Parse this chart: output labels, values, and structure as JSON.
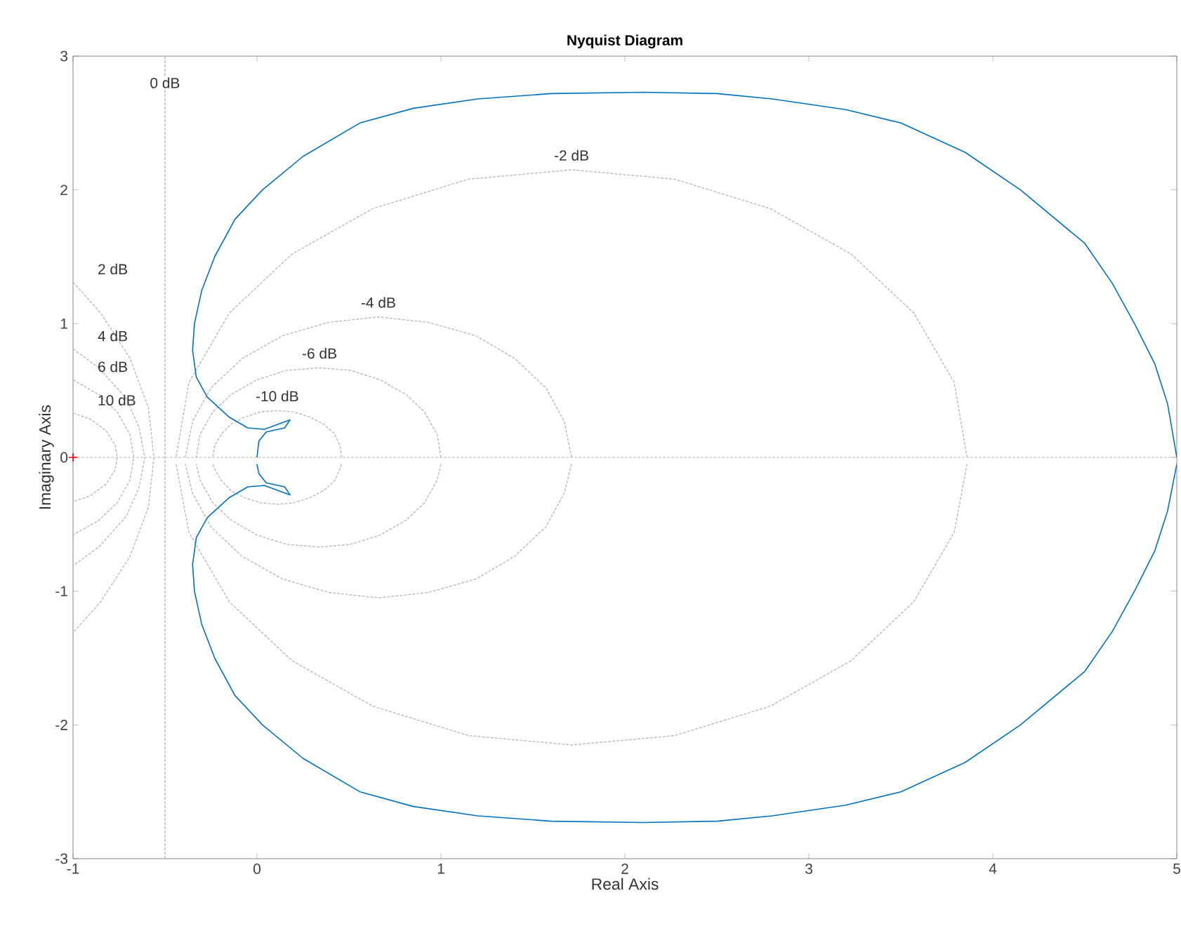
{
  "chart_data": {
    "type": "line",
    "title": "Nyquist Diagram",
    "xlabel": "Real Axis",
    "ylabel": "Imaginary Axis",
    "xlim": [
      -1,
      5
    ],
    "ylim": [
      -3,
      3
    ],
    "xticks": [
      -1,
      0,
      1,
      2,
      3,
      4,
      5
    ],
    "yticks": [
      -3,
      -2,
      -1,
      0,
      1,
      2,
      3
    ],
    "series": [
      {
        "color": "#0072bd",
        "line_style": "solid",
        "x": [
          0,
          0.01,
          0.05,
          0.15,
          0.18,
          0.12,
          0.04,
          -0.05,
          -0.15,
          -0.27,
          -0.33,
          -0.35,
          -0.34,
          -0.3,
          -0.23,
          -0.12,
          0.03,
          0.25,
          0.56,
          0.85,
          1.2,
          1.6,
          2.1,
          2.5,
          2.8,
          3.2,
          3.5,
          3.85,
          4.15,
          4.5,
          4.65,
          4.77,
          4.88,
          4.95,
          5.0
        ],
        "values": [
          0,
          0.12,
          0.19,
          0.22,
          0.28,
          0.25,
          0.21,
          0.22,
          0.3,
          0.45,
          0.6,
          0.8,
          1.0,
          1.25,
          1.5,
          1.78,
          2.0,
          2.25,
          2.5,
          2.61,
          2.68,
          2.72,
          2.73,
          2.72,
          2.68,
          2.6,
          2.5,
          2.28,
          2.0,
          1.6,
          1.3,
          1.0,
          0.7,
          0.4,
          0
        ]
      },
      {
        "color": "#0072bd",
        "line_style": "solid",
        "x": [
          0,
          0.01,
          0.05,
          0.15,
          0.18,
          0.12,
          0.04,
          -0.05,
          -0.15,
          -0.27,
          -0.33,
          -0.35,
          -0.34,
          -0.3,
          -0.23,
          -0.12,
          0.03,
          0.25,
          0.56,
          0.85,
          1.2,
          1.6,
          2.1,
          2.5,
          2.8,
          3.2,
          3.5,
          3.85,
          4.15,
          4.5,
          4.65,
          4.77,
          4.88,
          4.95,
          5.0
        ],
        "values": [
          -0.05,
          -0.12,
          -0.19,
          -0.22,
          -0.28,
          -0.25,
          -0.21,
          -0.22,
          -0.3,
          -0.45,
          -0.6,
          -0.8,
          -1.0,
          -1.25,
          -1.5,
          -1.78,
          -2.0,
          -2.25,
          -2.5,
          -2.61,
          -2.68,
          -2.72,
          -2.73,
          -2.72,
          -2.68,
          -2.6,
          -2.5,
          -2.28,
          -2.0,
          -1.6,
          -1.3,
          -1.0,
          -0.7,
          -0.4,
          -0.05
        ]
      },
      {
        "color": "#bbbbbb",
        "line_style": "dotted",
        "x": [
          -1,
          -0.85,
          -0.69,
          -0.59,
          -0.56,
          -0.59,
          -0.69,
          -0.85,
          -1
        ],
        "values": [
          1.31,
          1.08,
          0.74,
          0.37,
          0,
          -0.37,
          -0.74,
          -1.08,
          -1.31
        ]
      },
      {
        "color": "#bbbbbb",
        "line_style": "dotted",
        "x": [
          -1,
          -0.86,
          -0.71,
          -0.64,
          -0.61,
          -0.64,
          -0.71,
          -0.86,
          -1
        ],
        "values": [
          0.81,
          0.67,
          0.44,
          0.22,
          0,
          -0.22,
          -0.44,
          -0.67,
          -0.81
        ]
      },
      {
        "color": "#bbbbbb",
        "line_style": "dotted",
        "x": [
          -1,
          -0.86,
          -0.76,
          -0.69,
          -0.67,
          -0.69,
          -0.76,
          -0.86,
          -1
        ],
        "values": [
          0.58,
          0.47,
          0.34,
          0.17,
          0,
          -0.17,
          -0.34,
          -0.47,
          -0.58
        ]
      },
      {
        "color": "#bbbbbb",
        "line_style": "dotted",
        "x": [
          -1,
          -0.91,
          -0.82,
          -0.77,
          -0.76,
          -0.77,
          -0.82,
          -0.91,
          -1
        ],
        "values": [
          0.33,
          0.29,
          0.2,
          0.09,
          0,
          -0.09,
          -0.2,
          -0.29,
          -0.33
        ]
      },
      {
        "color": "#bbbbbb",
        "line_style": "dotted",
        "x": [
          3.86,
          3.79,
          3.57,
          3.23,
          2.79,
          2.27,
          1.71,
          1.15,
          0.63,
          0.19,
          -0.15,
          -0.37,
          -0.44
        ],
        "values": [
          0,
          0.56,
          1.08,
          1.52,
          1.86,
          2.08,
          2.15,
          2.08,
          1.86,
          1.52,
          1.08,
          0.56,
          0
        ]
      },
      {
        "color": "#bbbbbb",
        "line_style": "dotted",
        "x": [
          3.86,
          3.79,
          3.57,
          3.23,
          2.79,
          2.27,
          1.71,
          1.15,
          0.63,
          0.19,
          -0.15,
          -0.37,
          -0.44
        ],
        "values": [
          -0.05,
          -0.56,
          -1.08,
          -1.52,
          -1.86,
          -2.08,
          -2.15,
          -2.08,
          -1.86,
          -1.52,
          -1.08,
          -0.56,
          -0.05
        ]
      },
      {
        "color": "#bbbbbb",
        "line_style": "dotted",
        "x": [
          1.71,
          1.67,
          1.57,
          1.4,
          1.19,
          0.93,
          0.66,
          0.39,
          0.14,
          -0.08,
          -0.25,
          -0.35,
          -0.39
        ],
        "values": [
          0,
          0.27,
          0.52,
          0.74,
          0.91,
          1.01,
          1.05,
          1.01,
          0.91,
          0.74,
          0.52,
          0.27,
          0
        ]
      },
      {
        "color": "#bbbbbb",
        "line_style": "dotted",
        "x": [
          1.71,
          1.67,
          1.57,
          1.4,
          1.19,
          0.93,
          0.66,
          0.39,
          0.14,
          -0.08,
          -0.25,
          -0.35,
          -0.39
        ],
        "values": [
          -0.05,
          -0.27,
          -0.52,
          -0.74,
          -0.91,
          -1.01,
          -1.05,
          -1.01,
          -0.91,
          -0.74,
          -0.52,
          -0.27,
          -0.05
        ]
      },
      {
        "color": "#bbbbbb",
        "line_style": "dotted",
        "x": [
          1.0,
          0.98,
          0.91,
          0.81,
          0.67,
          0.51,
          0.34,
          0.16,
          0.0,
          -0.14,
          -0.24,
          -0.31,
          -0.33
        ],
        "values": [
          0,
          0.17,
          0.34,
          0.47,
          0.58,
          0.65,
          0.67,
          0.65,
          0.58,
          0.47,
          0.34,
          0.17,
          0
        ]
      },
      {
        "color": "#bbbbbb",
        "line_style": "dotted",
        "x": [
          1.0,
          0.98,
          0.91,
          0.81,
          0.67,
          0.51,
          0.34,
          0.16,
          0.0,
          -0.14,
          -0.24,
          -0.31,
          -0.33
        ],
        "values": [
          -0.05,
          -0.17,
          -0.34,
          -0.47,
          -0.58,
          -0.65,
          -0.67,
          -0.65,
          -0.58,
          -0.47,
          -0.34,
          -0.17,
          -0.05
        ]
      },
      {
        "color": "#bbbbbb",
        "line_style": "dotted",
        "x": [
          0.46,
          0.45,
          0.42,
          0.36,
          0.29,
          0.2,
          0.11,
          0.02,
          -0.07,
          -0.14,
          -0.19,
          -0.23,
          -0.24
        ],
        "values": [
          0,
          0.09,
          0.18,
          0.25,
          0.3,
          0.34,
          0.35,
          0.34,
          0.3,
          0.25,
          0.18,
          0.09,
          0
        ]
      },
      {
        "color": "#bbbbbb",
        "line_style": "dotted",
        "x": [
          0.46,
          0.45,
          0.42,
          0.36,
          0.29,
          0.2,
          0.11,
          0.02,
          -0.07,
          -0.14,
          -0.19,
          -0.23,
          -0.24
        ],
        "values": [
          -0.05,
          -0.09,
          -0.18,
          -0.25,
          -0.3,
          -0.34,
          -0.35,
          -0.34,
          -0.3,
          -0.25,
          -0.18,
          -0.09,
          -0.05
        ]
      },
      {
        "type": "scatter",
        "marker": "cross",
        "color": "#ff0000",
        "x": [
          -1
        ],
        "values": [
          0
        ]
      }
    ],
    "ref_lines": [
      {
        "axis": "x",
        "value": -0.5,
        "label": "0 dB",
        "color": "#aaaaaa",
        "line_style": "dotted"
      },
      {
        "axis": "y",
        "value": 0,
        "color": "#bbbbbb",
        "line_style": "dotted"
      }
    ],
    "annotations": [
      {
        "text": "2 dB",
        "x": -1,
        "y": 1.31
      },
      {
        "text": "4 dB",
        "x": -1,
        "y": 0.81
      },
      {
        "text": "6 dB",
        "x": -1,
        "y": 0.58
      },
      {
        "text": "10 dB",
        "x": -1,
        "y": 0.33
      },
      {
        "text": "-2 dB",
        "x": 1.71,
        "y": 2.15
      },
      {
        "text": "-4 dB",
        "x": 0.66,
        "y": 1.05
      },
      {
        "text": "-6 dB",
        "x": 0.34,
        "y": 0.67
      },
      {
        "text": "-10 dB",
        "x": 0.11,
        "y": 0.35
      }
    ]
  }
}
